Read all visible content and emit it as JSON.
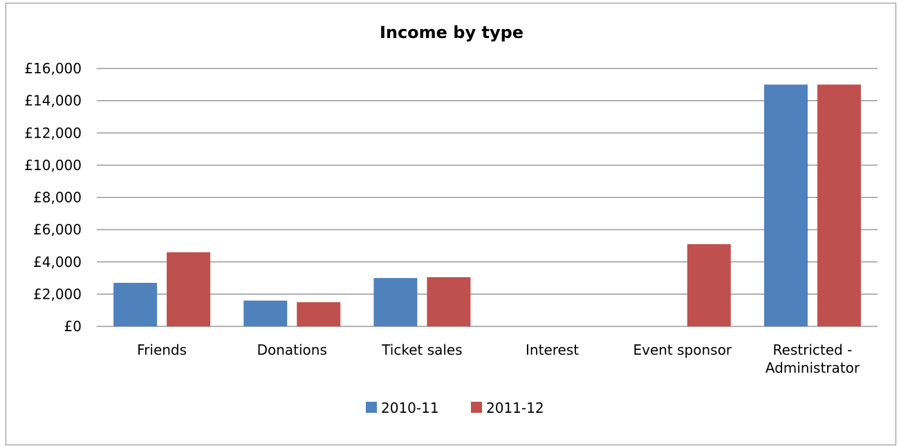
{
  "chart_data": {
    "type": "bar",
    "title": "Income by type",
    "xlabel": "",
    "ylabel": "",
    "categories": [
      [
        "Friends"
      ],
      [
        "Donations"
      ],
      [
        "Ticket sales"
      ],
      [
        "Interest"
      ],
      [
        "Event sponsor"
      ],
      [
        "Restricted -",
        "Administrator"
      ]
    ],
    "series": [
      {
        "name": "2010-11",
        "color": "#4f81bd",
        "values": [
          2700,
          1600,
          3000,
          0,
          0,
          15000
        ]
      },
      {
        "name": "2011-12",
        "color": "#c0504d",
        "values": [
          4600,
          1500,
          3050,
          0,
          5100,
          15000
        ]
      }
    ],
    "ylim": [
      0,
      16000
    ],
    "yticks": [
      0,
      2000,
      4000,
      6000,
      8000,
      10000,
      12000,
      14000,
      16000
    ],
    "ytick_labels": [
      "£0",
      "£2,000",
      "£4,000",
      "£6,000",
      "£8,000",
      "£10,000",
      "£12,000",
      "£14,000",
      "£16,000"
    ],
    "grid": true,
    "grid_color": "#868686",
    "legend_position": "bottom"
  }
}
